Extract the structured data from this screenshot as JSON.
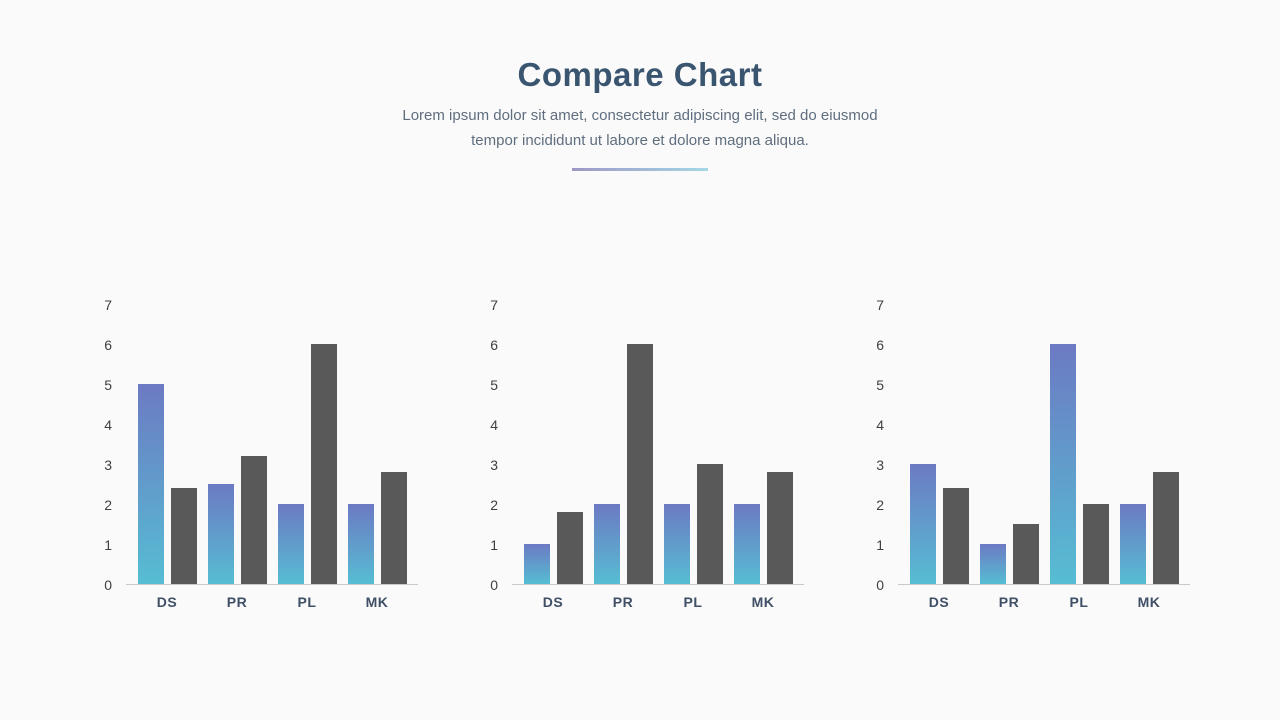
{
  "slide": {
    "title": "Compare Chart",
    "subtitle": "Lorem ipsum dolor sit amet, consectetur adipiscing elit, sed do eiusmod tempor incididunt ut labore et dolore magna aliqua."
  },
  "colors": {
    "background": "#fafafa",
    "title": "#3a5570",
    "subtitle": "#5f6e7e",
    "bar_gradient_top": "#6c7ac3",
    "bar_gradient_bottom": "#56bdd3",
    "bar_gray": "#595959",
    "category_label": "#3f4f66",
    "tick_label": "#404040",
    "axis_line": "#c9c9c9",
    "divider_left": "#9e97c6",
    "divider_right": "#a5d8e6"
  },
  "chart_data": [
    {
      "type": "bar",
      "title": "",
      "categories": [
        "DS",
        "PR",
        "PL",
        "MK"
      ],
      "series": [
        {
          "name": "blue-gradient",
          "values": [
            5,
            2.5,
            2,
            2
          ]
        },
        {
          "name": "dark-gray",
          "values": [
            2.4,
            3.2,
            6,
            2.8
          ]
        }
      ],
      "ylim": [
        0,
        7
      ],
      "yticks": [
        0,
        1,
        2,
        3,
        4,
        5,
        6,
        7
      ],
      "grid": false,
      "legend": "none"
    },
    {
      "type": "bar",
      "title": "",
      "categories": [
        "DS",
        "PR",
        "PL",
        "MK"
      ],
      "series": [
        {
          "name": "blue-gradient",
          "values": [
            1,
            2,
            2,
            2
          ]
        },
        {
          "name": "dark-gray",
          "values": [
            1.8,
            6,
            3,
            2.8
          ]
        }
      ],
      "ylim": [
        0,
        7
      ],
      "yticks": [
        0,
        1,
        2,
        3,
        4,
        5,
        6,
        7
      ],
      "grid": false,
      "legend": "none"
    },
    {
      "type": "bar",
      "title": "",
      "categories": [
        "DS",
        "PR",
        "PL",
        "MK"
      ],
      "series": [
        {
          "name": "blue-gradient",
          "values": [
            3,
            1,
            6,
            2
          ]
        },
        {
          "name": "dark-gray",
          "values": [
            2.4,
            1.5,
            2,
            2.8
          ]
        }
      ],
      "ylim": [
        0,
        7
      ],
      "yticks": [
        0,
        1,
        2,
        3,
        4,
        5,
        6,
        7
      ],
      "grid": false,
      "legend": "none"
    }
  ]
}
